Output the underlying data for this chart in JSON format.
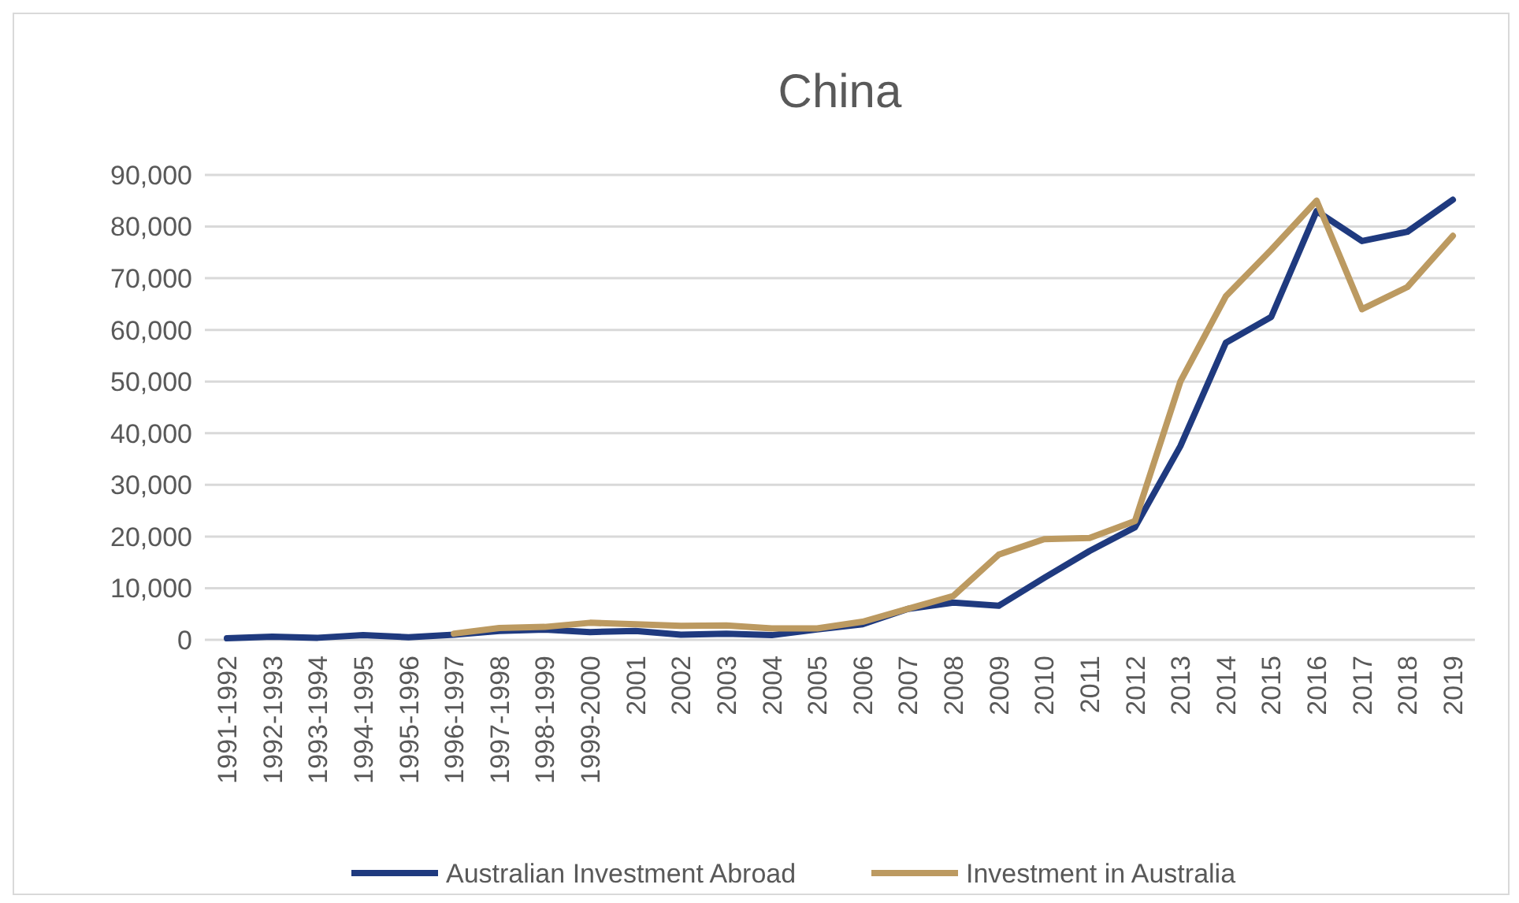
{
  "chart_data": {
    "type": "line",
    "title": "China",
    "categories": [
      "1991-1992",
      "1992-1993",
      "1993-1994",
      "1994-1995",
      "1995-1996",
      "1996-1997",
      "1997-1998",
      "1998-1999",
      "1999-2000",
      "2001",
      "2002",
      "2003",
      "2004",
      "2005",
      "2006",
      "2007",
      "2008",
      "2009",
      "2010",
      "2011",
      "2012",
      "2013",
      "2014",
      "2015",
      "2016",
      "2017",
      "2018",
      "2019"
    ],
    "series": [
      {
        "name": "Australian Investment Abroad",
        "color": "#1f3a7f",
        "values": [
          300,
          600,
          400,
          900,
          500,
          1000,
          1700,
          2000,
          1500,
          1700,
          1000,
          1200,
          900,
          2000,
          3000,
          6000,
          7200,
          6600,
          12000,
          17200,
          21800,
          37500,
          57500,
          62500,
          83000,
          77200,
          79000,
          85200
        ]
      },
      {
        "name": "Investment in Australia",
        "color": "#bc9a61",
        "values": [
          null,
          null,
          null,
          null,
          null,
          1200,
          2300,
          2500,
          3300,
          3000,
          2700,
          2800,
          2200,
          2200,
          3500,
          6000,
          8500,
          16500,
          19500,
          19700,
          23000,
          50000,
          66500,
          75500,
          85000,
          64000,
          68300,
          78200
        ]
      }
    ],
    "ylim": [
      0,
      90000
    ],
    "yticks": [
      {
        "value": 0,
        "label": "0"
      },
      {
        "value": 10000,
        "label": "10,000"
      },
      {
        "value": 20000,
        "label": "20,000"
      },
      {
        "value": 30000,
        "label": "30,000"
      },
      {
        "value": 40000,
        "label": "40,000"
      },
      {
        "value": 50000,
        "label": "50,000"
      },
      {
        "value": 60000,
        "label": "60,000"
      },
      {
        "value": 70000,
        "label": "70,000"
      },
      {
        "value": 80000,
        "label": "80,000"
      },
      {
        "value": 90000,
        "label": "90,000"
      }
    ],
    "grid": "y",
    "legend": "bottom",
    "marker": "none",
    "line_style": "solid"
  }
}
